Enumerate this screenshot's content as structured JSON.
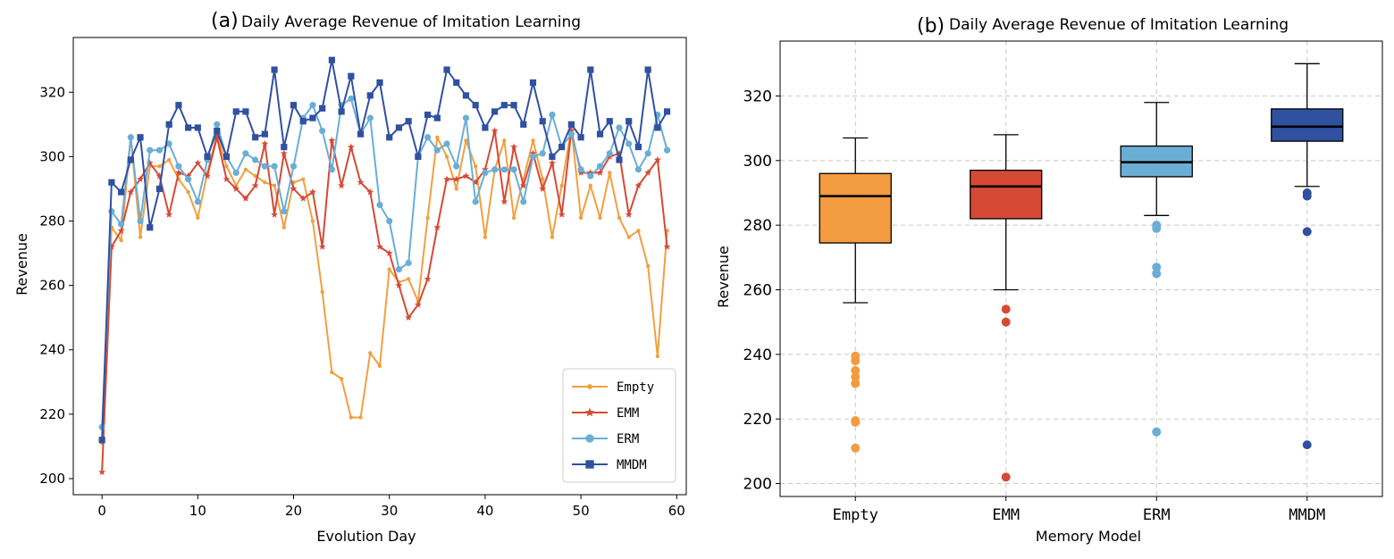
{
  "chart_data": [
    {
      "type": "line",
      "title_prefix": "(a)",
      "title": "Daily Average Revenue of Imitation Learning",
      "xlabel": "Evolution Day",
      "ylabel": "Revenue",
      "xlim": [
        -3,
        61
      ],
      "ylim": [
        195,
        337
      ],
      "xticks": [
        0,
        10,
        20,
        30,
        40,
        50,
        60
      ],
      "yticks": [
        200,
        220,
        240,
        260,
        280,
        300,
        320
      ],
      "grid": false,
      "legend_position": "lower right",
      "x": [
        0,
        1,
        2,
        3,
        4,
        5,
        6,
        7,
        8,
        9,
        10,
        11,
        12,
        13,
        14,
        15,
        16,
        17,
        18,
        19,
        20,
        21,
        22,
        23,
        24,
        25,
        26,
        27,
        28,
        29,
        30,
        31,
        32,
        33,
        34,
        35,
        36,
        37,
        38,
        39,
        40,
        41,
        42,
        43,
        44,
        45,
        46,
        47,
        48,
        49,
        50,
        51,
        52,
        53,
        54,
        55,
        56,
        57,
        58,
        59
      ],
      "series": [
        {
          "name": "Empty",
          "color": "#f0a040",
          "marker": "dot",
          "values": [
            211,
            278,
            274,
            306,
            275,
            297,
            297,
            299,
            293,
            289,
            281,
            295,
            307,
            297,
            291,
            296,
            294,
            292,
            291,
            278,
            292,
            293,
            280,
            258,
            233,
            231,
            219,
            219,
            239,
            235,
            265,
            261,
            262,
            255,
            281,
            306,
            300,
            290,
            305,
            297,
            275,
            296,
            305,
            281,
            293,
            305,
            293,
            275,
            291,
            309,
            281,
            291,
            281,
            295,
            281,
            275,
            277,
            266,
            238,
            277
          ]
        },
        {
          "name": "EMM",
          "color": "#d44a35",
          "marker": "star",
          "values": [
            202,
            272,
            277,
            289,
            293,
            298,
            294,
            282,
            295,
            294,
            298,
            294,
            306,
            293,
            290,
            287,
            291,
            304,
            282,
            301,
            290,
            287,
            289,
            272,
            305,
            291,
            303,
            292,
            289,
            272,
            270,
            260,
            250,
            254,
            262,
            278,
            293,
            293,
            294,
            292,
            296,
            308,
            286,
            303,
            291,
            301,
            290,
            298,
            282,
            308,
            295,
            295,
            295,
            300,
            301,
            282,
            291,
            295,
            299,
            272
          ]
        },
        {
          "name": "ERM",
          "color": "#6aaed6",
          "marker": "circle",
          "values": [
            216,
            283,
            279,
            306,
            280,
            302,
            302,
            304,
            297,
            293,
            286,
            299,
            310,
            300,
            295,
            301,
            299,
            297,
            297,
            283,
            297,
            312,
            316,
            308,
            296,
            316,
            318,
            307,
            312,
            285,
            280,
            265,
            267,
            300,
            306,
            302,
            304,
            297,
            312,
            286,
            295,
            296,
            296,
            296,
            286,
            300,
            301,
            313,
            303,
            307,
            296,
            294,
            297,
            301,
            309,
            304,
            296,
            301,
            313,
            302
          ]
        },
        {
          "name": "MMDM",
          "color": "#3050a0",
          "marker": "square",
          "values": [
            212,
            292,
            289,
            299,
            306,
            278,
            290,
            310,
            316,
            309,
            309,
            300,
            308,
            300,
            314,
            314,
            306,
            307,
            327,
            303,
            316,
            311,
            312,
            315,
            330,
            314,
            325,
            307,
            319,
            323,
            306,
            309,
            311,
            300,
            313,
            312,
            327,
            323,
            319,
            316,
            309,
            314,
            316,
            316,
            310,
            323,
            311,
            300,
            303,
            310,
            306,
            327,
            307,
            311,
            299,
            311,
            303,
            327,
            309,
            314
          ]
        }
      ]
    },
    {
      "type": "box",
      "title_prefix": "(b)",
      "title": "Daily Average Revenue of Imitation Learning",
      "xlabel": "Memory Model",
      "ylabel": "Revenue",
      "ylim": [
        196,
        337
      ],
      "yticks": [
        200,
        220,
        240,
        260,
        280,
        300,
        320
      ],
      "grid": true,
      "categories": [
        "Empty",
        "EMM",
        "ERM",
        "MMDM"
      ],
      "boxes": [
        {
          "name": "Empty",
          "color": "#f29b40",
          "whisker_low": 256,
          "q1": 274.5,
          "median": 289,
          "q3": 296,
          "whisker_high": 307,
          "outliers": [
            239.5,
            238,
            235,
            233,
            231,
            219.5,
            219,
            211
          ]
        },
        {
          "name": "EMM",
          "color": "#d44a35",
          "whisker_low": 260,
          "q1": 282,
          "median": 292,
          "q3": 297,
          "whisker_high": 308,
          "outliers": [
            254,
            250,
            202
          ]
        },
        {
          "name": "ERM",
          "color": "#6aaed6",
          "whisker_low": 283,
          "q1": 295,
          "median": 299.5,
          "q3": 304.5,
          "whisker_high": 318,
          "outliers": [
            280,
            279,
            267,
            265,
            216
          ]
        },
        {
          "name": "MMDM",
          "color": "#3050a0",
          "whisker_low": 292,
          "q1": 306,
          "median": 310.5,
          "q3": 316,
          "whisker_high": 330,
          "outliers": [
            290,
            289,
            278,
            212
          ]
        }
      ]
    }
  ]
}
